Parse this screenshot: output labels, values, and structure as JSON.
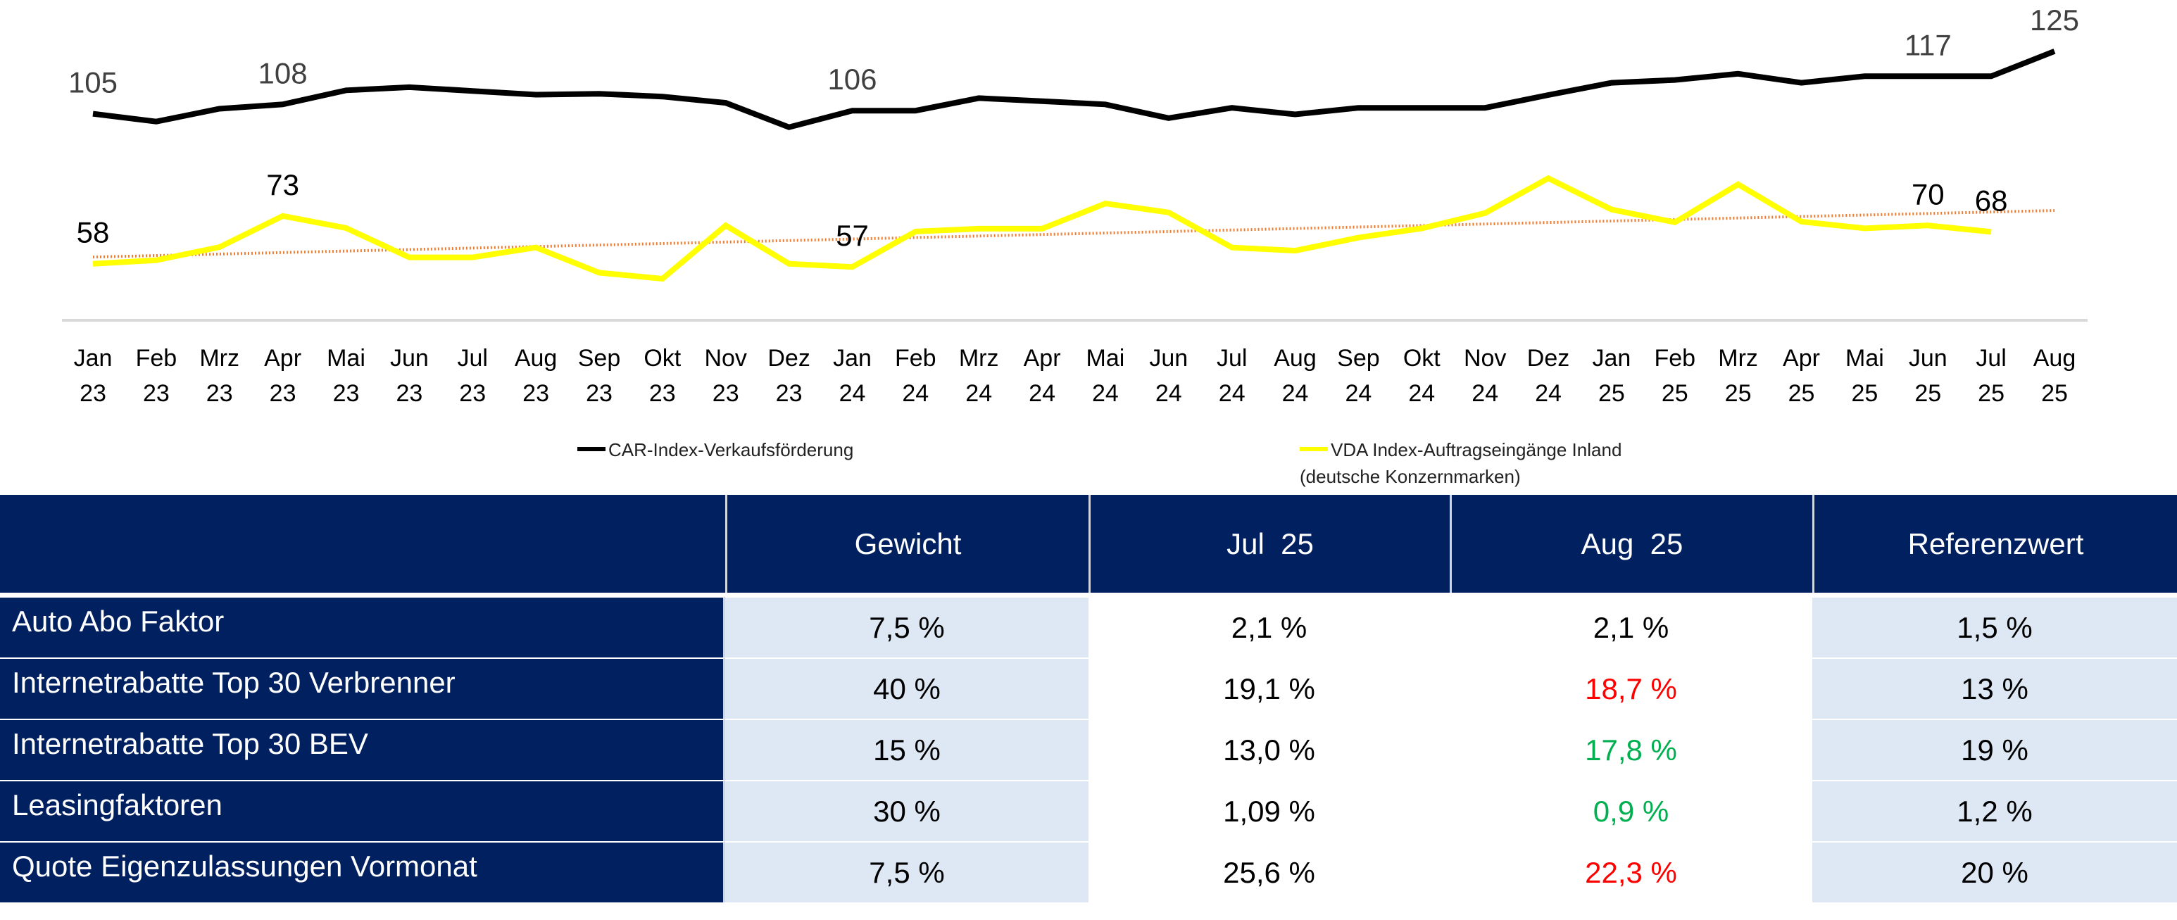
{
  "chart_data": {
    "type": "line",
    "title": "",
    "xlabel": "",
    "ylabel": "",
    "grid": false,
    "legend_position": "bottom",
    "categories": [
      [
        "Jan",
        "23"
      ],
      [
        "Feb",
        "23"
      ],
      [
        "Mrz",
        "23"
      ],
      [
        "Apr",
        "23"
      ],
      [
        "Mai",
        "23"
      ],
      [
        "Jun",
        "23"
      ],
      [
        "Jul",
        "23"
      ],
      [
        "Aug",
        "23"
      ],
      [
        "Sep",
        "23"
      ],
      [
        "Okt",
        "23"
      ],
      [
        "Nov",
        "23"
      ],
      [
        "Dez",
        "23"
      ],
      [
        "Jan",
        "24"
      ],
      [
        "Feb",
        "24"
      ],
      [
        "Mrz",
        "24"
      ],
      [
        "Apr",
        "24"
      ],
      [
        "Mai",
        "24"
      ],
      [
        "Jun",
        "24"
      ],
      [
        "Jul",
        "24"
      ],
      [
        "Aug",
        "24"
      ],
      [
        "Sep",
        "24"
      ],
      [
        "Okt",
        "24"
      ],
      [
        "Nov",
        "24"
      ],
      [
        "Dez",
        "24"
      ],
      [
        "Jan",
        "25"
      ],
      [
        "Feb",
        "25"
      ],
      [
        "Mrz",
        "25"
      ],
      [
        "Apr",
        "25"
      ],
      [
        "Mai",
        "25"
      ],
      [
        "Jun",
        "25"
      ],
      [
        "Jul",
        "25"
      ],
      [
        "Aug",
        "25"
      ]
    ],
    "series": [
      {
        "name": "CAR-Index-Verkaufsförderung",
        "color": "#000000",
        "label_color": "#404040",
        "values": [
          105,
          102.5,
          106.6,
          108,
          112.5,
          113.5,
          112.3,
          111.1,
          111.4,
          110.5,
          108.5,
          100.7,
          106,
          106,
          110,
          109,
          108,
          103.6,
          106.9,
          104.8,
          106.9,
          106.9,
          106.9,
          111,
          114.9,
          115.8,
          117.8,
          114.9,
          117,
          117,
          117,
          125
        ],
        "data_labels": [
          {
            "index": 0,
            "text": "105"
          },
          {
            "index": 3,
            "text": "108"
          },
          {
            "index": 12,
            "text": "106"
          },
          {
            "index": 29,
            "text": "117"
          },
          {
            "index": 31,
            "text": "125"
          }
        ]
      },
      {
        "name": "VDA Index-Auftragseingänge Inland (deutsche Konzernmarken)",
        "color": "#ffff00",
        "label_color": "#000000",
        "values": [
          58,
          59.1,
          63.2,
          73,
          69.2,
          60,
          60,
          63.1,
          55.2,
          53.3,
          70,
          58,
          57,
          68.1,
          69,
          69,
          76.9,
          74.1,
          63.1,
          62.1,
          66.2,
          69.1,
          73.9,
          84.8,
          75,
          71,
          82.9,
          71.2,
          69.1,
          70,
          68,
          null
        ],
        "data_labels": [
          {
            "index": 0,
            "text": "58"
          },
          {
            "index": 3,
            "text": "73"
          },
          {
            "index": 12,
            "text": "57"
          },
          {
            "index": 29,
            "text": "70"
          },
          {
            "index": 30,
            "text": "68"
          }
        ]
      },
      {
        "name": "Trend (VDA Index)",
        "type": "linear-trendline",
        "color": "#ed7d31",
        "style": "dotted",
        "start_value": 60.1,
        "end_value": 74.7
      }
    ],
    "black_axis_range": [
      85,
      130
    ],
    "yellow_axis_range": [
      38,
      88
    ],
    "legend": [
      {
        "label": "CAR-Index-Verkaufsförderung",
        "color": "#000000"
      },
      {
        "label_line1": "VDA Index-Auftragseingänge Inland",
        "label_line2": "(deutsche Konzernmarken)",
        "color": "#ffff00"
      }
    ]
  },
  "legend": {
    "car_label": "CAR-Index-Verkaufsförderung",
    "vda_label_line1": "VDA Index-Auftragseingänge Inland",
    "vda_label_line2": "(deutsche Konzernmarken)"
  },
  "table": {
    "headers": [
      "",
      "Gewicht",
      "Jul  25",
      "Aug  25",
      "Referenzwert"
    ],
    "rows": [
      {
        "label": "Auto Abo Faktor",
        "gewicht": "7,5 %",
        "jul": "2,1 %",
        "aug": "2,1 %",
        "aug_status": "neutral",
        "referenz": "1,5 %"
      },
      {
        "label": "Internetrabatte Top 30 Verbrenner",
        "gewicht": "40 %",
        "jul": "19,1 %",
        "aug": "18,7 %",
        "aug_status": "negative",
        "referenz": "13 %"
      },
      {
        "label": "Internetrabatte Top 30 BEV",
        "gewicht": "15 %",
        "jul": "13,0 %",
        "aug": "17,8 %",
        "aug_status": "positive",
        "referenz": "19 %"
      },
      {
        "label": "Leasingfaktoren",
        "gewicht": "30 %",
        "jul": "1,09 %",
        "aug": "0,9 %",
        "aug_status": "positive",
        "referenz": "1,2 %"
      },
      {
        "label": "Quote Eigenzulassungen Vormonat",
        "gewicht": "7,5 %",
        "jul": "25,6 %",
        "aug": "22,3 %",
        "aug_status": "negative",
        "referenz": "20 %"
      }
    ],
    "colors": {
      "header_bg": "#002060",
      "light_cell_bg": "#dee8f4",
      "negative": "#ff0000",
      "positive": "#00b050",
      "neutral": "#000000"
    }
  }
}
